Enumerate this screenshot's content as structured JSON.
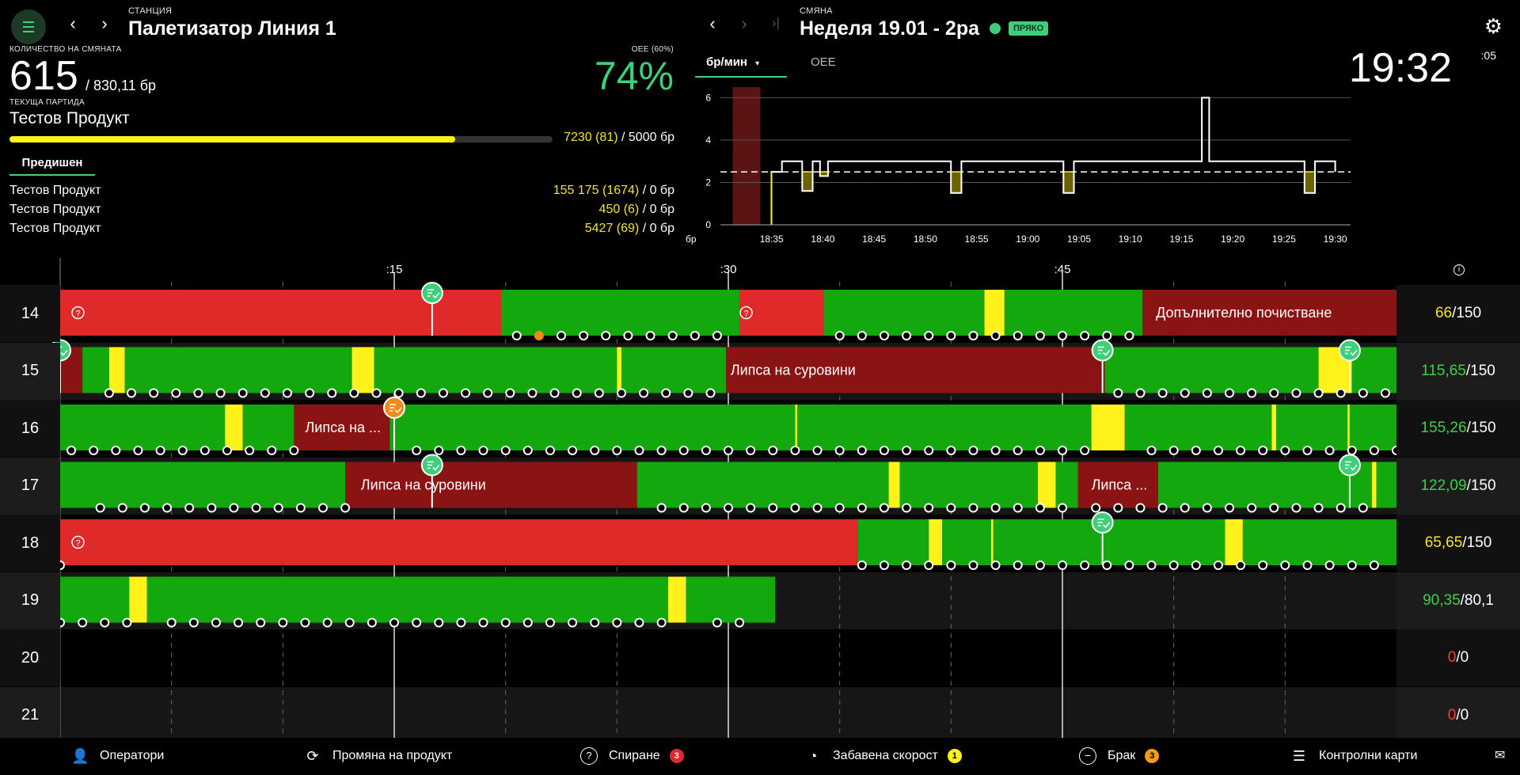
{
  "header": {
    "station_caption": "СТАНЦИЯ",
    "station_name": "Палетизатор Линия 1",
    "shift_caption": "СМЯНА",
    "shift_name": "Неделя 19.01 - 2ра",
    "live_label": "ПРЯКО",
    "clock": "19:32",
    "clock_seconds": ":05"
  },
  "summary": {
    "qty_caption": "КОЛИЧЕСТВО НА СМЯНАТА",
    "qty_value": "615",
    "qty_total": "/ 830,11 бр",
    "oee_caption": "OEE (60%)",
    "oee_value": "74%",
    "batch_caption": "ТЕКУЩА ПАРТИДА",
    "batch_product": "Тестов Продукт",
    "batch_progress_fraction": 0.82,
    "batch_progress_value": "7230 (81)",
    "batch_progress_total": " / 5000 бр",
    "previous_tab": "Предишен",
    "previous": [
      {
        "name": "Тестов Продукт",
        "value": "155 175 (1674)",
        "total": " / 0 бр"
      },
      {
        "name": "Тестов Продукт",
        "value": "450 (6)",
        "total": " / 0 бр"
      },
      {
        "name": "Тестов Продукт",
        "value": "5427 (69)",
        "total": " / 0 бр"
      }
    ]
  },
  "chart_tabs": {
    "active": "бр/мин",
    "inactive": "OEE"
  },
  "chart_data": {
    "type": "line",
    "x_ticks": [
      "18:35",
      "18:40",
      "18:45",
      "18:50",
      "18:55",
      "19:00",
      "19:05",
      "19:10",
      "19:15",
      "19:20",
      "19:25",
      "19:30"
    ],
    "y_ticks": [
      "0",
      "2",
      "4",
      "6"
    ],
    "y_unit": "бр",
    "ylim": [
      0,
      6.5
    ],
    "target": 2.5,
    "series": [
      {
        "values": [
          [
            18.583,
            0
          ],
          [
            18.583,
            2.5
          ],
          [
            18.6,
            2.5
          ],
          [
            18.6,
            3
          ],
          [
            18.633,
            3
          ],
          [
            18.633,
            1.6
          ],
          [
            18.65,
            1.6
          ],
          [
            18.65,
            3
          ],
          [
            18.662,
            3
          ],
          [
            18.662,
            2.3
          ],
          [
            18.675,
            2.3
          ],
          [
            18.675,
            3
          ],
          [
            18.875,
            3
          ],
          [
            18.875,
            1.5
          ],
          [
            18.892,
            1.5
          ],
          [
            18.892,
            3
          ],
          [
            19.058,
            3
          ],
          [
            19.058,
            1.5
          ],
          [
            19.075,
            1.5
          ],
          [
            19.075,
            3
          ],
          [
            19.283,
            3
          ],
          [
            19.283,
            6
          ],
          [
            19.295,
            6
          ],
          [
            19.295,
            3
          ],
          [
            19.45,
            3
          ],
          [
            19.45,
            1.5
          ],
          [
            19.467,
            1.5
          ],
          [
            19.467,
            3
          ],
          [
            19.5,
            3
          ],
          [
            19.5,
            2.5
          ]
        ]
      }
    ],
    "stop_region": [
      18.52,
      18.565
    ]
  },
  "timeline": {
    "time_labels": [
      ":15",
      ":30",
      ":45"
    ],
    "rows": [
      {
        "num": "14",
        "actual": "66",
        "plan": "/150",
        "actual_color": "#f4e52a"
      },
      {
        "num": "15",
        "actual": "115,65",
        "plan": "/150",
        "actual_color": "#3fcf48"
      },
      {
        "num": "16",
        "actual": "155,26",
        "plan": "/150",
        "actual_color": "#3fcf48"
      },
      {
        "num": "17",
        "actual": "122,09",
        "plan": "/150",
        "actual_color": "#3fcf48"
      },
      {
        "num": "18",
        "actual": "65,65",
        "plan": "/150",
        "actual_color": "#f4e52a"
      },
      {
        "num": "19",
        "actual": "90,35",
        "plan": "/80,1",
        "actual_color": "#3fcf48"
      },
      {
        "num": "20",
        "actual": "0",
        "plan": "/0",
        "actual_color": "#ff3b3b"
      },
      {
        "num": "21",
        "actual": "0",
        "plan": "/0",
        "actual_color": "#ff3b3b"
      }
    ],
    "labels": {
      "cleaning": "Допълнително почистване",
      "no_material": "Липса на суровини",
      "no_material_short": "Липса на ...",
      "no_material_short2": "Липса ..."
    }
  },
  "footer": {
    "operators": "Оператори",
    "product_change": "Промяна на продукт",
    "stop": "Спиране",
    "stop_count": "3",
    "slow_speed": "Забавена скорост",
    "slow_count": "1",
    "scrap": "Брак",
    "scrap_count": "3",
    "control_cards": "Контролни карти"
  },
  "colors": {
    "green": "#14a80f",
    "red": "#e02a2a",
    "darkred": "#8a1414",
    "yellow": "#fff21a",
    "accent": "#3fcf7a"
  }
}
